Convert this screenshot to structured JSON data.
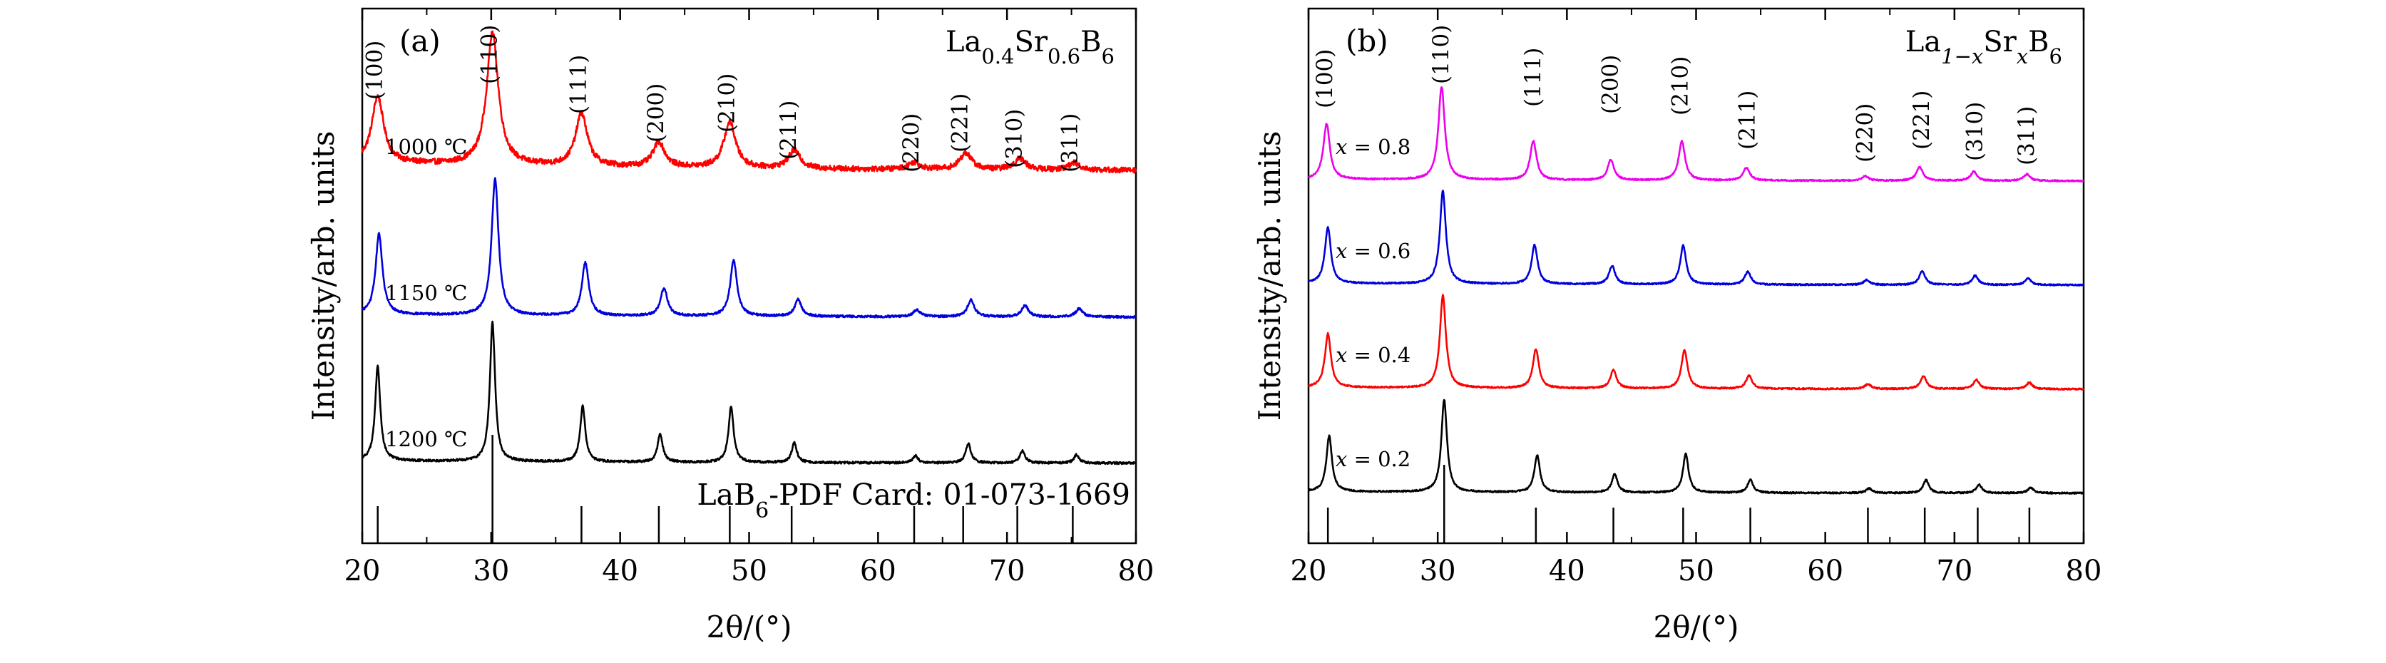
{
  "chart_data": [
    {
      "type": "line",
      "panel_tag": "(a)",
      "formula": {
        "parts": [
          {
            "t": "La",
            "sub": "0.4"
          },
          {
            "t": "Sr",
            "sub": "0.6"
          },
          {
            "t": "B",
            "sub": "6"
          }
        ]
      },
      "xlabel": "2θ/(°)",
      "ylabel": "Intensity/arb. units",
      "xlim": [
        20,
        80
      ],
      "x_ticks": [
        20,
        30,
        40,
        50,
        60,
        70,
        80
      ],
      "reference_card": {
        "parts": [
          {
            "t": "LaB",
            "sub": "6"
          },
          {
            "t": "-PDF Card: 01-073-1669",
            "sub": ""
          }
        ]
      },
      "reference_lines": [
        {
          "pos": 21.2,
          "rel": 0.45
        },
        {
          "pos": 30.1,
          "rel": 1.0
        },
        {
          "pos": 37.0,
          "rel": 0.52
        },
        {
          "pos": 43.0,
          "rel": 0.28
        },
        {
          "pos": 48.5,
          "rel": 0.58
        },
        {
          "pos": 53.3,
          "rel": 0.22
        },
        {
          "pos": 62.8,
          "rel": 0.12
        },
        {
          "pos": 66.6,
          "rel": 0.25
        },
        {
          "pos": 70.8,
          "rel": 0.14
        },
        {
          "pos": 75.1,
          "rel": 0.1
        }
      ],
      "peak_labels": [
        {
          "label": "(100)",
          "x": 21.2
        },
        {
          "label": "(110)",
          "x": 30.1
        },
        {
          "label": "(111)",
          "x": 37.0
        },
        {
          "label": "(200)",
          "x": 43.0
        },
        {
          "label": "(210)",
          "x": 48.5
        },
        {
          "label": "(211)",
          "x": 53.3
        },
        {
          "label": "(220)",
          "x": 62.8
        },
        {
          "label": "(221)",
          "x": 66.6
        },
        {
          "label": "(310)",
          "x": 70.8
        },
        {
          "label": "(311)",
          "x": 75.1
        }
      ],
      "series": [
        {
          "name": "1000 ℃",
          "color": "#ff0000",
          "offset": 2.0,
          "width": 0.55,
          "noise": 0.02,
          "bg": 0.06,
          "peaks": [
            [
              21.2,
              0.48
            ],
            [
              30.1,
              0.95
            ],
            [
              37.0,
              0.38
            ],
            [
              43.0,
              0.18
            ],
            [
              48.5,
              0.33
            ],
            [
              53.5,
              0.13
            ],
            [
              62.8,
              0.05
            ],
            [
              66.8,
              0.12
            ],
            [
              71.0,
              0.08
            ],
            [
              75.2,
              0.05
            ]
          ]
        },
        {
          "name": "1150 ℃",
          "color": "#0000dd",
          "offset": 1.0,
          "width": 0.32,
          "noise": 0.008,
          "bg": 0.02,
          "peaks": [
            [
              21.3,
              0.58
            ],
            [
              30.3,
              0.98
            ],
            [
              37.3,
              0.38
            ],
            [
              43.4,
              0.2
            ],
            [
              48.8,
              0.4
            ],
            [
              53.8,
              0.12
            ],
            [
              63.0,
              0.05
            ],
            [
              67.2,
              0.12
            ],
            [
              71.4,
              0.08
            ],
            [
              75.6,
              0.06
            ]
          ]
        },
        {
          "name": "1200 ℃",
          "color": "#000000",
          "offset": 0.0,
          "width": 0.24,
          "noise": 0.008,
          "bg": 0.02,
          "peaks": [
            [
              21.2,
              0.68
            ],
            [
              30.1,
              1.0
            ],
            [
              37.1,
              0.4
            ],
            [
              43.1,
              0.2
            ],
            [
              48.6,
              0.4
            ],
            [
              53.5,
              0.14
            ],
            [
              62.9,
              0.05
            ],
            [
              67.0,
              0.14
            ],
            [
              71.2,
              0.09
            ],
            [
              75.4,
              0.06
            ]
          ]
        }
      ]
    },
    {
      "type": "line",
      "panel_tag": "(b)",
      "formula": {
        "parts": [
          {
            "t": "La",
            "sub": "1−x"
          },
          {
            "t": "Sr",
            "sub": "x"
          },
          {
            "t": "B",
            "sub": "6"
          }
        ]
      },
      "xlabel": "2θ/(°)",
      "ylabel": "Intensity/arb. units",
      "xlim": [
        20,
        80
      ],
      "x_ticks": [
        20,
        30,
        40,
        50,
        60,
        70,
        80
      ],
      "reference_lines": [
        {
          "pos": 21.5,
          "rel": 0.4
        },
        {
          "pos": 30.5,
          "rel": 1.0
        },
        {
          "pos": 37.6,
          "rel": 0.45
        },
        {
          "pos": 43.6,
          "rel": 0.3
        },
        {
          "pos": 49.0,
          "rel": 0.5
        },
        {
          "pos": 54.2,
          "rel": 0.2
        },
        {
          "pos": 63.3,
          "rel": 0.1
        },
        {
          "pos": 67.7,
          "rel": 0.22
        },
        {
          "pos": 71.8,
          "rel": 0.12
        },
        {
          "pos": 75.8,
          "rel": 0.08
        }
      ],
      "peak_labels": [
        {
          "label": "(100)",
          "x": 21.5
        },
        {
          "label": "(110)",
          "x": 30.5
        },
        {
          "label": "(111)",
          "x": 37.6
        },
        {
          "label": "(200)",
          "x": 43.6
        },
        {
          "label": "(210)",
          "x": 49.0
        },
        {
          "label": "(211)",
          "x": 54.2
        },
        {
          "label": "(220)",
          "x": 63.3
        },
        {
          "label": "(221)",
          "x": 67.7
        },
        {
          "label": "(310)",
          "x": 71.8
        },
        {
          "label": "(311)",
          "x": 75.8
        }
      ],
      "series": [
        {
          "name": "x = 0.8",
          "color": "#ee00ee",
          "offset": 3.0,
          "width": 0.3,
          "noise": 0.008,
          "bg": 0.02,
          "peaks": [
            [
              21.4,
              0.6
            ],
            [
              30.3,
              1.0
            ],
            [
              37.4,
              0.42
            ],
            [
              43.4,
              0.22
            ],
            [
              48.9,
              0.42
            ],
            [
              53.9,
              0.14
            ],
            [
              63.1,
              0.05
            ],
            [
              67.3,
              0.15
            ],
            [
              71.5,
              0.1
            ],
            [
              75.6,
              0.07
            ]
          ]
        },
        {
          "name": "x = 0.6",
          "color": "#0000dd",
          "offset": 2.0,
          "width": 0.28,
          "noise": 0.008,
          "bg": 0.02,
          "peaks": [
            [
              21.5,
              0.6
            ],
            [
              30.4,
              1.0
            ],
            [
              37.5,
              0.42
            ],
            [
              43.5,
              0.2
            ],
            [
              49.0,
              0.42
            ],
            [
              54.0,
              0.14
            ],
            [
              63.2,
              0.05
            ],
            [
              67.5,
              0.15
            ],
            [
              71.6,
              0.1
            ],
            [
              75.7,
              0.07
            ]
          ]
        },
        {
          "name": "x = 0.4",
          "color": "#ff0000",
          "offset": 1.0,
          "width": 0.28,
          "noise": 0.008,
          "bg": 0.02,
          "peaks": [
            [
              21.5,
              0.58
            ],
            [
              30.4,
              1.0
            ],
            [
              37.6,
              0.42
            ],
            [
              43.6,
              0.2
            ],
            [
              49.1,
              0.42
            ],
            [
              54.1,
              0.14
            ],
            [
              63.3,
              0.05
            ],
            [
              67.6,
              0.14
            ],
            [
              71.7,
              0.1
            ],
            [
              75.8,
              0.07
            ]
          ]
        },
        {
          "name": "x = 0.2",
          "color": "#000000",
          "offset": 0.0,
          "width": 0.26,
          "noise": 0.008,
          "bg": 0.02,
          "peaks": [
            [
              21.6,
              0.6
            ],
            [
              30.5,
              1.0
            ],
            [
              37.7,
              0.4
            ],
            [
              43.7,
              0.2
            ],
            [
              49.2,
              0.42
            ],
            [
              54.2,
              0.14
            ],
            [
              63.4,
              0.05
            ],
            [
              67.8,
              0.14
            ],
            [
              71.9,
              0.09
            ],
            [
              75.9,
              0.06
            ]
          ]
        }
      ]
    }
  ]
}
